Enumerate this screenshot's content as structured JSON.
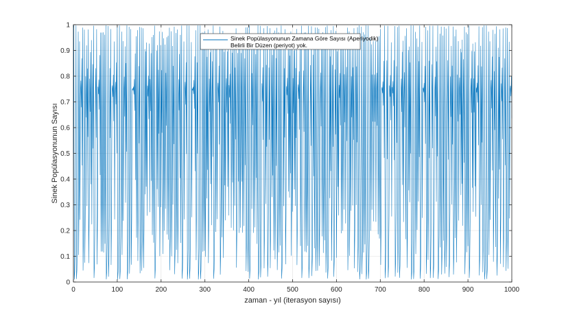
{
  "chart_data": {
    "type": "line",
    "title": "",
    "xlabel": "zaman - yıl (iterasyon sayısı)",
    "ylabel": "Sinek Popülasyonunun Sayısı",
    "xlim": [
      0,
      1000
    ],
    "ylim": [
      0,
      1
    ],
    "xticks": [
      0,
      100,
      200,
      300,
      400,
      500,
      600,
      700,
      800,
      900,
      1000
    ],
    "yticks": [
      0,
      0.1,
      0.2,
      0.3,
      0.4,
      0.5,
      0.6,
      0.7,
      0.8,
      0.9,
      1
    ],
    "grid": true,
    "legend_position": "top",
    "series": [
      {
        "name": "Sinek Popülasyonunun Zamana Göre Sayısı (Aperiyodik)",
        "color": "#0072BD",
        "generator": {
          "model": "logistic",
          "r": 3.99,
          "x0": 0.5,
          "n": 1001
        }
      }
    ],
    "legend_entries": [
      "Sinek Popülasyonunun Zamana Göre Sayısı (Aperiyodik)",
      "Belirli Bir Düzen (periyot) yok."
    ],
    "colors": {
      "line": "#0072BD",
      "axes": "#262626",
      "grid": "#DEDEDE"
    }
  }
}
